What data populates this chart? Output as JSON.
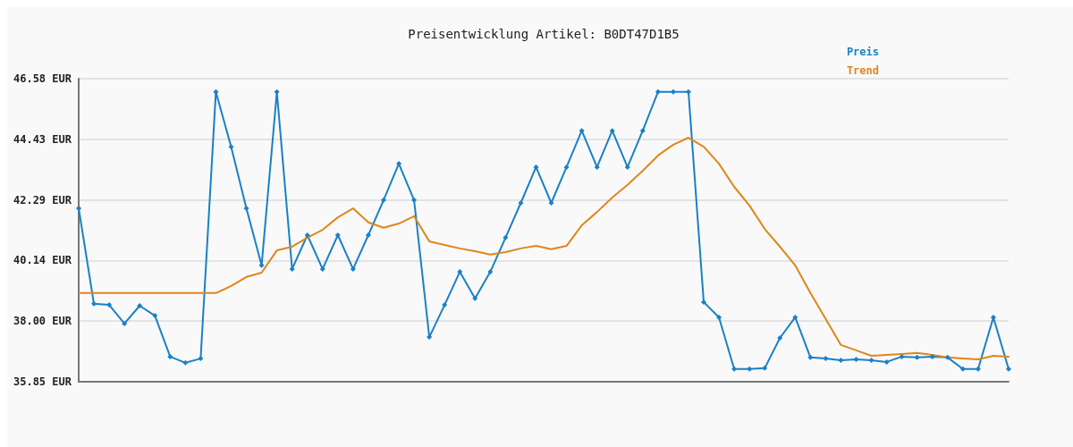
{
  "chart_data": {
    "type": "line",
    "title": "Preisentwicklung Artikel: B0DT47D1B5",
    "categories": [
      null,
      null,
      null,
      null,
      null,
      null,
      null,
      null,
      null,
      null,
      null,
      null,
      null,
      null,
      null,
      null,
      null,
      null,
      null,
      null,
      null,
      null,
      null,
      null,
      null,
      null,
      null,
      null,
      null,
      null,
      null,
      null,
      null,
      null,
      null,
      null,
      null,
      null,
      null,
      null,
      null,
      null,
      null,
      null,
      null,
      null,
      null,
      null,
      null,
      null,
      null,
      null,
      null,
      null,
      null,
      null,
      null,
      null,
      null,
      null,
      null,
      null
    ],
    "series": [
      {
        "name": "Preis",
        "color": "#1a80c8",
        "marker": "diamond",
        "values": [
          41.99,
          38.61,
          38.57,
          37.91,
          38.54,
          38.19,
          36.74,
          36.52,
          36.67,
          46.11,
          44.17,
          41.99,
          39.97,
          46.11,
          39.84,
          41.04,
          39.84,
          41.04,
          39.84,
          41.04,
          42.28,
          43.57,
          42.28,
          37.43,
          38.57,
          39.74,
          38.8,
          39.74,
          40.95,
          42.18,
          43.45,
          42.18,
          43.45,
          44.74,
          43.45,
          44.74,
          43.45,
          44.74,
          46.11,
          46.11,
          46.11,
          38.67,
          38.13,
          36.3,
          36.3,
          36.33,
          37.4,
          38.13,
          36.71,
          36.67,
          36.61,
          36.64,
          36.61,
          36.55,
          36.74,
          36.71,
          36.74,
          36.71,
          36.3,
          36.3,
          38.13,
          36.3
        ]
      },
      {
        "name": "Trend",
        "color": "#e0861a",
        "marker": "none",
        "values": [
          38.99,
          38.99,
          38.99,
          38.99,
          38.99,
          38.99,
          38.99,
          38.99,
          38.99,
          38.99,
          39.24,
          39.56,
          39.71,
          40.5,
          40.63,
          40.95,
          41.23,
          41.67,
          41.99,
          41.49,
          41.3,
          41.45,
          41.71,
          40.82,
          40.69,
          40.57,
          40.47,
          40.35,
          40.44,
          40.57,
          40.66,
          40.54,
          40.66,
          41.39,
          41.86,
          42.37,
          42.82,
          43.32,
          43.86,
          44.24,
          44.49,
          44.17,
          43.57,
          42.75,
          42.09,
          41.26,
          40.63,
          39.97,
          38.99,
          38.07,
          37.15,
          36.96,
          36.77,
          36.8,
          36.83,
          36.87,
          36.8,
          36.71,
          36.67,
          36.64,
          36.77,
          36.74
        ]
      }
    ],
    "ylim": [
      35.85,
      46.58
    ],
    "yticks": [
      {
        "value": 35.85,
        "label": "35.85 EUR"
      },
      {
        "value": 38.0,
        "label": "38.00 EUR"
      },
      {
        "value": 40.14,
        "label": "40.14 EUR"
      },
      {
        "value": 42.29,
        "label": "42.29 EUR"
      },
      {
        "value": 44.43,
        "label": "44.43 EUR"
      },
      {
        "value": 46.58,
        "label": "46.58 EUR"
      }
    ],
    "grid": "y",
    "legend": "top right",
    "tick_labels": "y",
    "line_style": "solid"
  }
}
